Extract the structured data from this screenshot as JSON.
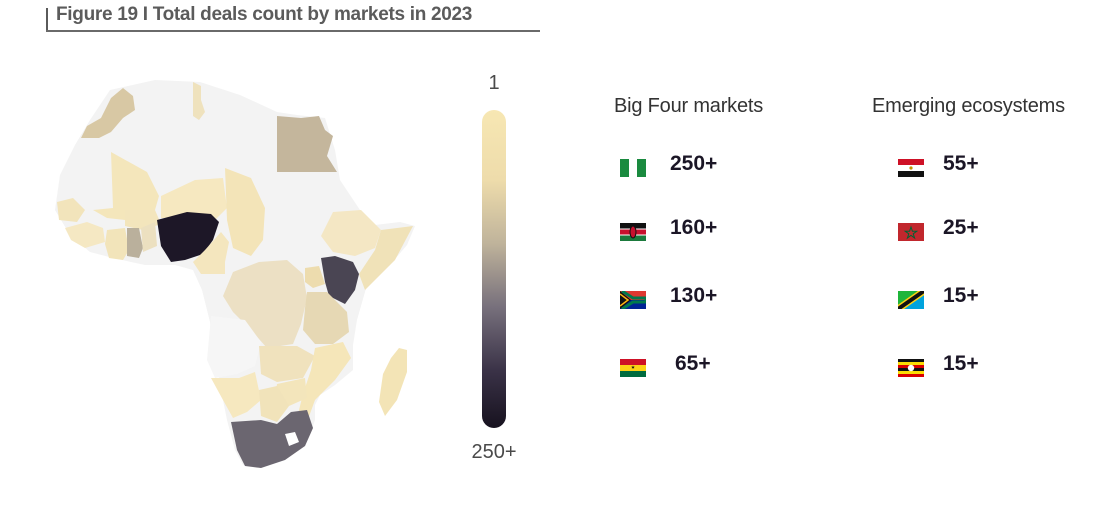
{
  "figure": {
    "title": "Figure 19 I Total deals count by markets in 2023"
  },
  "scale": {
    "min_label": "1",
    "max_label": "250+",
    "colors": [
      "#f7e7b3",
      "#eedcab",
      "#bfb39b",
      "#77707c",
      "#3a3247",
      "#17121f"
    ]
  },
  "map": {
    "base_color": "#f3f3f3",
    "regions": [
      {
        "name": "Nigeria",
        "color": "#1d1727"
      },
      {
        "name": "Kenya",
        "color": "#4a4553"
      },
      {
        "name": "South Africa",
        "color": "#6b6670"
      },
      {
        "name": "Ghana",
        "color": "#bab09c"
      },
      {
        "name": "Egypt",
        "color": "#c4b69c"
      },
      {
        "name": "Morocco",
        "color": "#d8c8a4"
      }
    ]
  },
  "big_four": {
    "heading": "Big Four markets",
    "items": [
      {
        "flag": "nigeria-flag-icon",
        "value": "250+"
      },
      {
        "flag": "kenya-flag-icon",
        "value": "160+"
      },
      {
        "flag": "south-africa-flag-icon",
        "value": "130+"
      },
      {
        "flag": "ghana-flag-icon",
        "value": "65+"
      }
    ]
  },
  "emerging": {
    "heading": "Emerging  ecosystems",
    "items": [
      {
        "flag": "egypt-flag-icon",
        "value": "55+"
      },
      {
        "flag": "morocco-flag-icon",
        "value": "25+"
      },
      {
        "flag": "tanzania-flag-icon",
        "value": "15+"
      },
      {
        "flag": "uganda-flag-icon",
        "value": "15+"
      }
    ]
  }
}
